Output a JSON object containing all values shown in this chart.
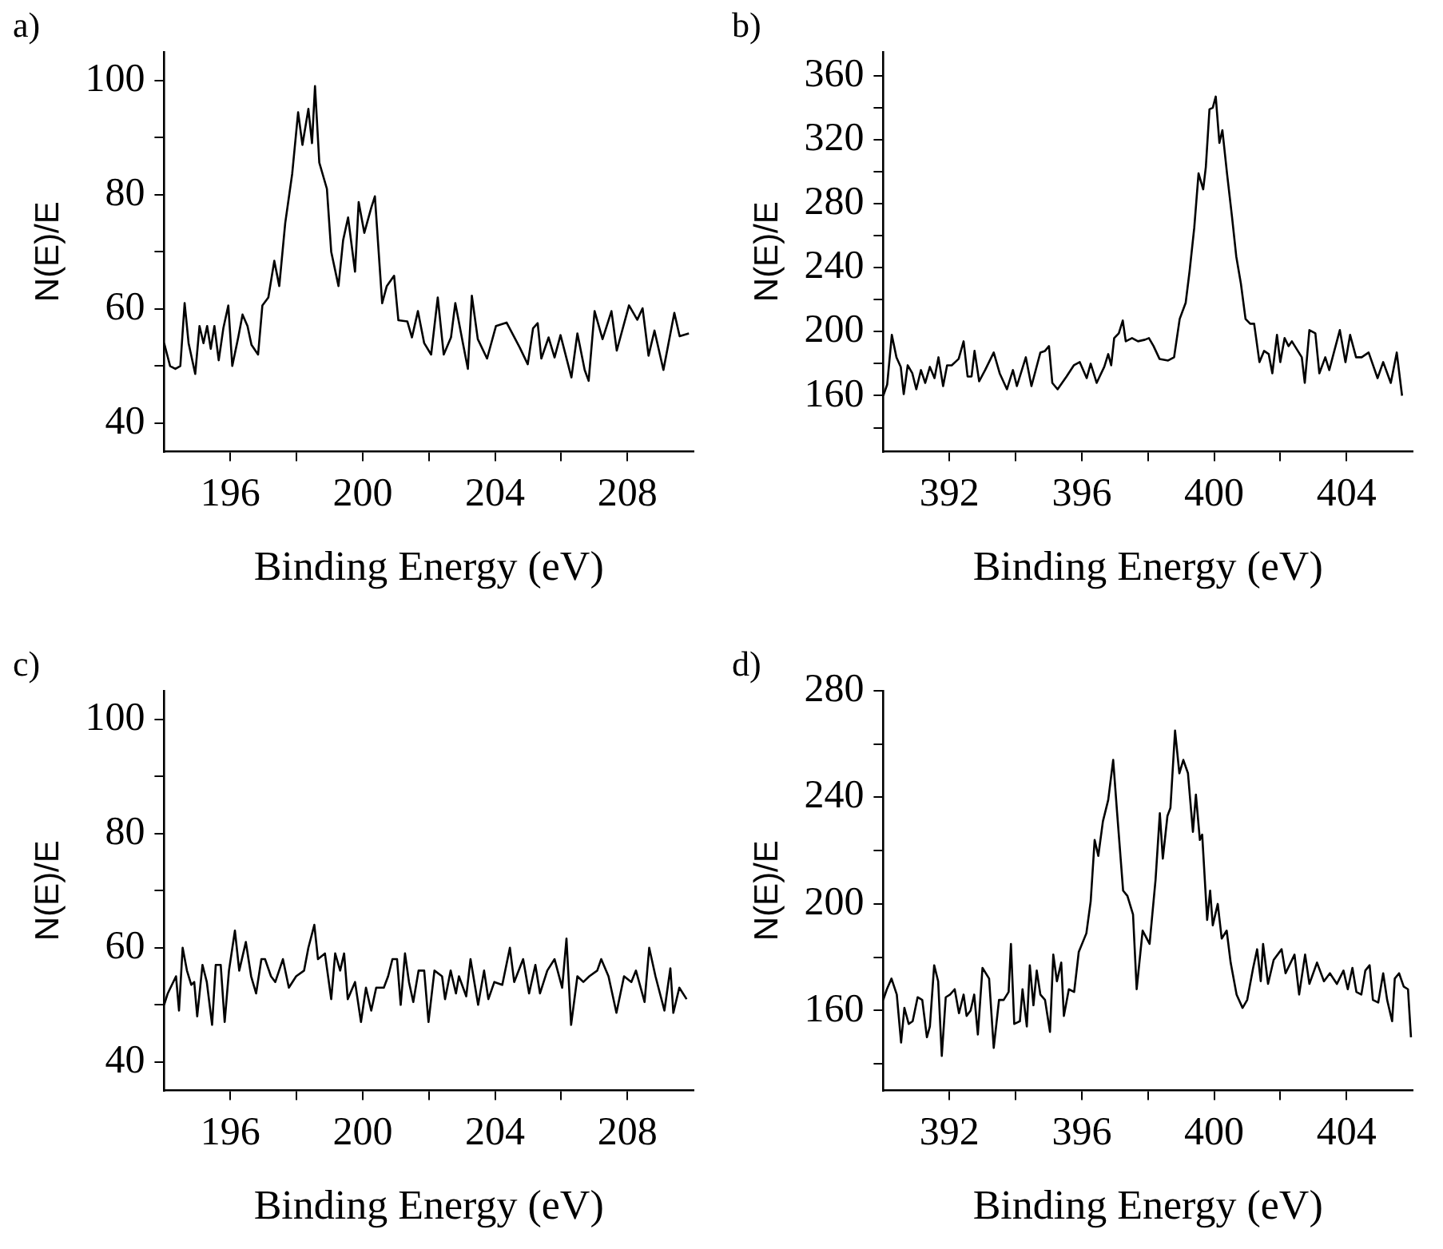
{
  "chart_data": [
    {
      "type": "line",
      "title": "a)",
      "xlabel": "Binding Energy (eV)",
      "ylabel": "N(E)/E",
      "xlim": [
        194,
        210
      ],
      "ylim": [
        35,
        105
      ],
      "xticks": [
        196,
        {
          "value": 198,
          "label": null
        },
        200,
        {
          "value": 202,
          "label": null
        },
        204,
        {
          "value": 206,
          "label": null
        },
        208
      ],
      "yticks": [
        40,
        {
          "value": 50,
          "label": null
        },
        60,
        {
          "value": 70,
          "label": null
        },
        80,
        {
          "value": 90,
          "label": null
        },
        100
      ],
      "grid": false,
      "legend": false,
      "marker": "none",
      "line_style": "solid",
      "series": [
        {
          "color": "#000000",
          "x": [
            194.0,
            194.18,
            194.34,
            194.49,
            194.62,
            194.74,
            194.94,
            195.07,
            195.19,
            195.3,
            195.41,
            195.52,
            195.65,
            195.79,
            195.94,
            196.06,
            196.24,
            196.37,
            196.52,
            196.64,
            196.84,
            196.97,
            197.15,
            197.33,
            197.48,
            197.66,
            197.87,
            198.05,
            198.18,
            198.36,
            198.47,
            198.56,
            198.69,
            198.92,
            199.05,
            199.27,
            199.41,
            199.56,
            199.77,
            199.88,
            200.05,
            200.26,
            200.37,
            200.59,
            200.73,
            200.95,
            201.08,
            201.35,
            201.49,
            201.67,
            201.86,
            202.07,
            202.27,
            202.45,
            202.67,
            202.8,
            203.03,
            203.18,
            203.3,
            203.48,
            203.76,
            204.03,
            204.35,
            204.75,
            204.99,
            205.15,
            205.29,
            205.4,
            205.62,
            205.8,
            205.98,
            206.31,
            206.49,
            206.71,
            206.83,
            207.01,
            207.25,
            207.52,
            207.68,
            208.05,
            208.3,
            208.46,
            208.64,
            208.82,
            209.09,
            209.42,
            209.58,
            209.86
          ],
          "values": [
            54,
            50,
            49.5,
            50,
            61,
            54,
            48.6,
            57,
            54,
            57,
            53,
            57,
            51,
            56.6,
            60.6,
            50,
            55,
            59,
            57,
            53.7,
            52,
            60.6,
            62,
            68.4,
            64,
            75,
            83.6,
            94.4,
            88.7,
            95,
            89,
            99,
            85.6,
            81,
            70,
            64,
            72,
            76,
            66.5,
            78.7,
            73.3,
            77.7,
            79.7,
            61,
            64,
            65.8,
            58,
            57.8,
            55,
            59.6,
            54,
            52,
            62,
            52,
            55,
            61,
            54,
            49.5,
            62.3,
            54.7,
            51.3,
            57,
            57.6,
            53.2,
            50.3,
            56.6,
            57.5,
            51.3,
            55,
            51.5,
            55.4,
            48,
            55.7,
            49.3,
            47.4,
            59.6,
            54.7,
            59.6,
            52.7,
            60.6,
            58.1,
            60.1,
            51.8,
            56.2,
            49.3,
            59.3,
            55.2,
            55.7
          ]
        }
      ]
    },
    {
      "type": "line",
      "title": "b)",
      "xlabel": "Binding Energy (eV)",
      "ylabel": "N(E)/E",
      "xlim": [
        390,
        406
      ],
      "ylim": [
        125,
        375
      ],
      "xticks": [
        392,
        {
          "value": 394,
          "label": null
        },
        396,
        {
          "value": 398,
          "label": null
        },
        400,
        {
          "value": 402,
          "label": null
        },
        404
      ],
      "yticks": [
        {
          "value": 140,
          "label": null
        },
        160,
        {
          "value": 180,
          "label": null
        },
        200,
        {
          "value": 220,
          "label": null
        },
        240,
        {
          "value": 260,
          "label": null
        },
        280,
        {
          "value": 300,
          "label": null
        },
        320,
        {
          "value": 340,
          "label": null
        },
        360
      ],
      "grid": false,
      "legend": false,
      "marker": "none",
      "line_style": "solid",
      "series": [
        {
          "color": "#000000",
          "x": [
            390.0,
            390.12,
            390.26,
            390.4,
            390.53,
            390.62,
            390.74,
            390.88,
            391.0,
            391.14,
            391.27,
            391.41,
            391.55,
            391.67,
            391.81,
            391.93,
            392.07,
            392.28,
            392.43,
            392.55,
            392.67,
            392.76,
            392.9,
            393.08,
            393.34,
            393.52,
            393.74,
            393.92,
            394.04,
            394.31,
            394.48,
            394.75,
            394.89,
            395.01,
            395.11,
            395.27,
            395.54,
            395.76,
            395.94,
            396.15,
            396.27,
            396.45,
            396.68,
            396.8,
            396.89,
            396.98,
            397.12,
            397.24,
            397.33,
            397.52,
            397.7,
            397.91,
            398.03,
            398.17,
            398.35,
            398.61,
            398.79,
            398.96,
            399.14,
            399.26,
            399.4,
            399.53,
            399.67,
            399.75,
            399.86,
            399.96,
            400.05,
            400.16,
            400.25,
            400.39,
            400.54,
            400.67,
            400.81,
            400.95,
            401.09,
            401.21,
            401.37,
            401.51,
            401.65,
            401.76,
            401.9,
            402.0,
            402.13,
            402.25,
            402.35,
            402.53,
            402.65,
            402.74,
            402.88,
            403.06,
            403.18,
            403.36,
            403.48,
            403.62,
            403.8,
            403.97,
            404.11,
            404.29,
            404.46,
            404.67,
            404.94,
            405.11,
            405.34,
            405.52,
            405.68
          ],
          "values": [
            160,
            167,
            198,
            184,
            178,
            161,
            179,
            174,
            164,
            176,
            168,
            178,
            171,
            184,
            166,
            179,
            179,
            183,
            194,
            172,
            172,
            188,
            169,
            176,
            187,
            174,
            164,
            176,
            166,
            184,
            166,
            187,
            188,
            191,
            168,
            164,
            172,
            179,
            181,
            171,
            180,
            168,
            178,
            186,
            179,
            196,
            199,
            207,
            194,
            196,
            194,
            195,
            196,
            191,
            183,
            182,
            184,
            208,
            218,
            238,
            265,
            299,
            289,
            303,
            339,
            340,
            347,
            318,
            326,
            299,
            272,
            247,
            230,
            208,
            205,
            205,
            181,
            188,
            186,
            174,
            198,
            181,
            196,
            191,
            194,
            188,
            184,
            168,
            201,
            199,
            174,
            184,
            176,
            187,
            201,
            181,
            198,
            184,
            184,
            187,
            171,
            181,
            168,
            187,
            160
          ]
        }
      ]
    },
    {
      "type": "line",
      "title": "c)",
      "xlabel": "Binding Energy (eV)",
      "ylabel": "N(E)/E",
      "xlim": [
        194,
        210
      ],
      "ylim": [
        35,
        105
      ],
      "xticks": [
        196,
        {
          "value": 198,
          "label": null
        },
        200,
        {
          "value": 202,
          "label": null
        },
        204,
        {
          "value": 206,
          "label": null
        },
        208
      ],
      "yticks": [
        40,
        {
          "value": 50,
          "label": null
        },
        60,
        {
          "value": 70,
          "label": null
        },
        80,
        {
          "value": 90,
          "label": null
        },
        100
      ],
      "grid": false,
      "legend": false,
      "marker": "none",
      "line_style": "solid",
      "series": [
        {
          "color": "#000000",
          "x": [
            194.0,
            194.11,
            194.36,
            194.45,
            194.56,
            194.69,
            194.82,
            194.91,
            195.0,
            195.16,
            195.29,
            195.45,
            195.56,
            195.71,
            195.83,
            195.96,
            196.14,
            196.27,
            196.47,
            196.63,
            196.78,
            196.94,
            197.05,
            197.23,
            197.36,
            197.59,
            197.77,
            197.99,
            198.23,
            198.36,
            198.54,
            198.65,
            198.86,
            199.05,
            199.17,
            199.32,
            199.44,
            199.55,
            199.77,
            199.95,
            200.1,
            200.26,
            200.41,
            200.64,
            200.77,
            200.9,
            201.04,
            201.15,
            201.28,
            201.4,
            201.53,
            201.69,
            201.86,
            201.99,
            202.17,
            202.4,
            202.49,
            202.66,
            202.82,
            202.91,
            203.13,
            203.26,
            203.49,
            203.67,
            203.8,
            203.98,
            204.22,
            204.45,
            204.58,
            204.85,
            205.03,
            205.22,
            205.36,
            205.58,
            205.8,
            206.03,
            206.16,
            206.3,
            206.49,
            206.67,
            206.85,
            207.09,
            207.21,
            207.43,
            207.67,
            207.9,
            208.12,
            208.26,
            208.52,
            208.66,
            208.85,
            209.12,
            209.3,
            209.39,
            209.57,
            209.79
          ],
          "values": [
            50,
            52,
            55,
            49,
            60,
            56,
            53.5,
            54,
            48,
            57,
            54,
            46.5,
            57,
            57,
            47,
            56,
            63,
            56,
            61,
            55,
            52,
            58,
            58,
            55,
            54,
            58,
            53,
            55,
            56,
            60,
            64,
            58,
            59,
            51,
            59,
            56,
            59,
            51,
            54,
            47,
            53,
            49,
            53,
            53,
            55,
            58,
            58,
            50,
            59,
            54,
            50.5,
            56,
            56,
            47,
            56,
            55,
            51,
            56,
            52,
            55,
            51.5,
            58,
            50,
            56,
            51,
            54,
            53.5,
            60,
            54,
            58,
            52,
            57,
            52,
            56,
            58,
            53,
            61.6,
            46.5,
            55,
            54,
            55,
            56,
            58,
            55,
            48.6,
            55,
            54,
            56,
            50.5,
            60,
            55,
            49,
            56.4,
            48.6,
            53,
            51
          ]
        }
      ]
    },
    {
      "type": "line",
      "title": "d)",
      "xlabel": "Binding Energy (eV)",
      "ylabel": "N(E)/E",
      "xlim": [
        390,
        406
      ],
      "ylim": [
        130,
        280
      ],
      "xticks": [
        392,
        {
          "value": 394,
          "label": null
        },
        396,
        {
          "value": 398,
          "label": null
        },
        400,
        {
          "value": 402,
          "label": null
        },
        404
      ],
      "yticks": [
        {
          "value": 140,
          "label": null
        },
        160,
        {
          "value": 180,
          "label": null
        },
        200,
        {
          "value": 220,
          "label": null
        },
        240,
        {
          "value": 260,
          "label": null
        },
        280
      ],
      "grid": false,
      "legend": false,
      "marker": "none",
      "line_style": "solid",
      "series": [
        {
          "color": "#000000",
          "x": [
            390.0,
            390.11,
            390.25,
            390.41,
            390.54,
            390.64,
            390.77,
            390.89,
            391.04,
            391.18,
            391.32,
            391.41,
            391.54,
            391.66,
            391.77,
            391.89,
            392.02,
            392.16,
            392.29,
            392.43,
            392.52,
            392.64,
            392.75,
            392.86,
            393.0,
            393.2,
            393.34,
            393.5,
            393.64,
            393.79,
            393.86,
            393.96,
            394.13,
            394.21,
            394.34,
            394.43,
            394.54,
            394.64,
            394.75,
            394.89,
            395.04,
            395.14,
            395.25,
            395.38,
            395.46,
            395.61,
            395.77,
            395.91,
            396.14,
            396.27,
            396.39,
            396.5,
            396.64,
            396.8,
            396.95,
            397.07,
            397.25,
            397.38,
            397.55,
            397.66,
            397.84,
            398.05,
            398.23,
            398.36,
            398.45,
            398.59,
            398.68,
            398.82,
            398.95,
            399.07,
            399.21,
            399.36,
            399.45,
            399.57,
            399.64,
            399.79,
            399.88,
            399.96,
            400.11,
            400.23,
            400.38,
            400.5,
            400.68,
            400.86,
            401.0,
            401.18,
            401.3,
            401.41,
            401.48,
            401.63,
            401.8,
            402.04,
            402.16,
            402.43,
            402.57,
            402.75,
            402.88,
            403.11,
            403.32,
            403.5,
            403.71,
            403.91,
            404.04,
            404.18,
            404.3,
            404.45,
            404.57,
            404.7,
            404.8,
            404.96,
            405.11,
            405.23,
            405.38,
            405.46,
            405.59,
            405.73,
            405.86,
            405.95
          ],
          "values": [
            164,
            168,
            172,
            166,
            148,
            161,
            155,
            156,
            165,
            164,
            150,
            154,
            177,
            171,
            143,
            165,
            166,
            168,
            159,
            166,
            158,
            160,
            166,
            151,
            176,
            172,
            146,
            164,
            164,
            167,
            185,
            155,
            156,
            168,
            154,
            177,
            162,
            175,
            166,
            164,
            152,
            181,
            171,
            178,
            158,
            168,
            167,
            182,
            189,
            201,
            224,
            218,
            231,
            239,
            254,
            234,
            205,
            203,
            196,
            168,
            190,
            185,
            209,
            234,
            217,
            233,
            236,
            265,
            249,
            254,
            249,
            227,
            241,
            224,
            226,
            194,
            205,
            192,
            200,
            187,
            190,
            178,
            166,
            161,
            164,
            176,
            183,
            171,
            185,
            170,
            179,
            183,
            174,
            181,
            166,
            181,
            170,
            178,
            171,
            174,
            170,
            175,
            168,
            176,
            167,
            166,
            175,
            177,
            164,
            163,
            174,
            164,
            156,
            172,
            174,
            169,
            168,
            150
          ]
        }
      ]
    }
  ]
}
